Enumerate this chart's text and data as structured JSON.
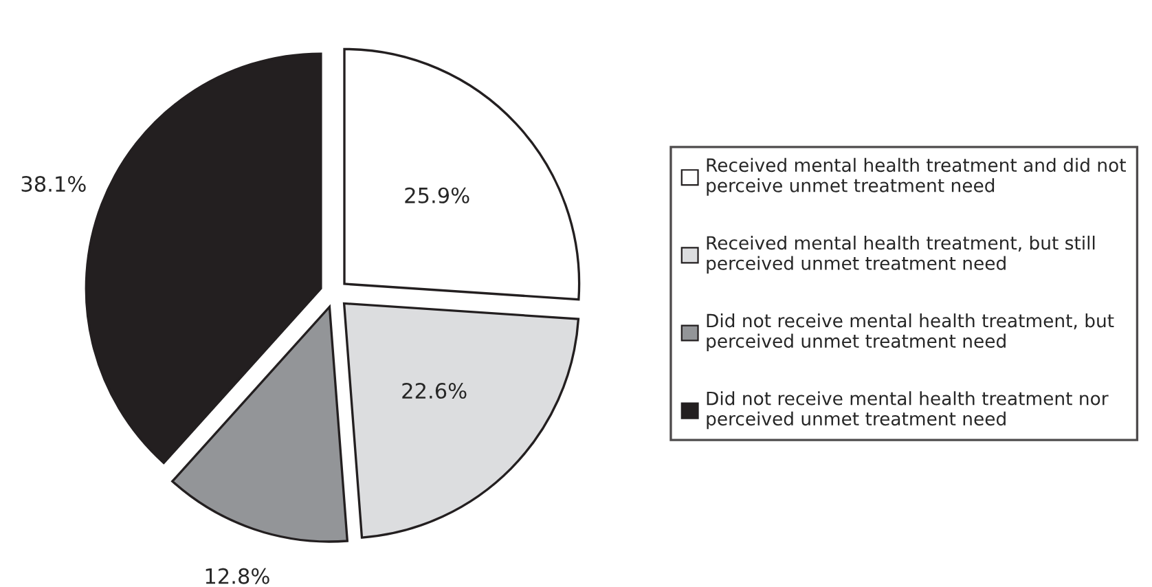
{
  "chart_data": {
    "type": "pie",
    "categories": [
      "Received mental health treatment and did not perceive unmet treatment need",
      "Received mental health treatment, but still perceived unmet treatment need",
      "Did not receive mental health treatment, but perceived unmet treatment need",
      "Did not receive mental health treatment nor perceived unmet treatment need"
    ],
    "values": [
      25.9,
      22.6,
      12.8,
      38.1
    ],
    "colors": [
      "#ffffff",
      "#dcdddf",
      "#939598",
      "#231f20"
    ],
    "value_labels": [
      "25.9%",
      "22.6%",
      "12.8%",
      "38.1%"
    ],
    "legend": "right"
  }
}
